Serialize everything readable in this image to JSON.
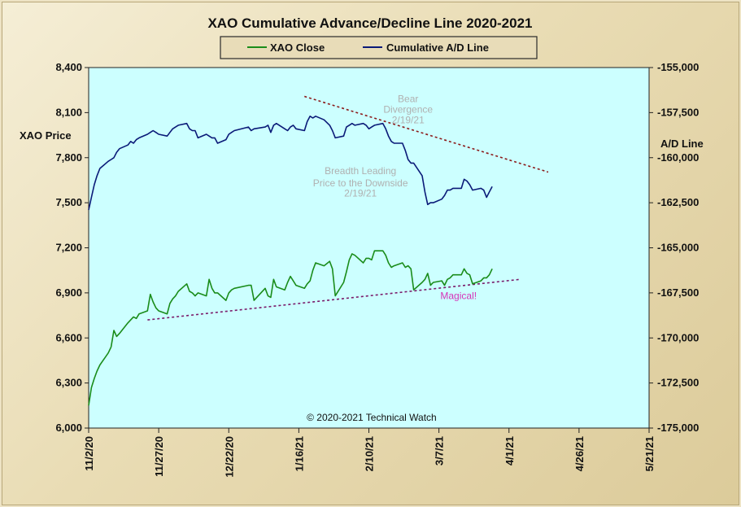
{
  "chart_data": {
    "type": "line",
    "title": "XAO Cumulative Advance/Decline Line 2020-2021",
    "ylabel_left": "XAO Price",
    "ylabel_right": "A/D Line",
    "x_ticks": [
      "11/2/20",
      "11/27/20",
      "12/22/20",
      "1/16/21",
      "2/10/21",
      "3/7/21",
      "4/1/21",
      "4/26/21",
      "5/21/21"
    ],
    "x_range": [
      "2020-11-02",
      "2021-05-21"
    ],
    "ylim_left": [
      6000,
      8400
    ],
    "ylim_right": [
      -175000,
      -155000
    ],
    "y_ticks_left": [
      "6,000",
      "6,300",
      "6,600",
      "6,900",
      "7,200",
      "7,500",
      "7,800",
      "8,100",
      "8,400"
    ],
    "y_ticks_right": [
      "-175,000",
      "-172,500",
      "-170,000",
      "-167,500",
      "-165,000",
      "-162,500",
      "-160,000",
      "-157,500",
      "-155,000"
    ],
    "grid": false,
    "legend_position": "top-center",
    "series": [
      {
        "name": "XAO Close",
        "axis": "left",
        "color": "#1a8c1a",
        "points": [
          [
            "2020-11-02",
            6150
          ],
          [
            "2020-11-03",
            6270
          ],
          [
            "2020-11-04",
            6330
          ],
          [
            "2020-11-05",
            6380
          ],
          [
            "2020-11-06",
            6420
          ],
          [
            "2020-11-09",
            6500
          ],
          [
            "2020-11-10",
            6540
          ],
          [
            "2020-11-11",
            6650
          ],
          [
            "2020-11-12",
            6610
          ],
          [
            "2020-11-13",
            6630
          ],
          [
            "2020-11-16",
            6700
          ],
          [
            "2020-11-17",
            6720
          ],
          [
            "2020-11-18",
            6740
          ],
          [
            "2020-11-19",
            6730
          ],
          [
            "2020-11-20",
            6760
          ],
          [
            "2020-11-23",
            6780
          ],
          [
            "2020-11-24",
            6890
          ],
          [
            "2020-11-25",
            6840
          ],
          [
            "2020-11-26",
            6800
          ],
          [
            "2020-11-27",
            6780
          ],
          [
            "2020-11-30",
            6760
          ],
          [
            "2020-12-01",
            6830
          ],
          [
            "2020-12-02",
            6860
          ],
          [
            "2020-12-03",
            6880
          ],
          [
            "2020-12-04",
            6910
          ],
          [
            "2020-12-07",
            6960
          ],
          [
            "2020-12-08",
            6910
          ],
          [
            "2020-12-09",
            6900
          ],
          [
            "2020-12-10",
            6880
          ],
          [
            "2020-12-11",
            6900
          ],
          [
            "2020-12-14",
            6880
          ],
          [
            "2020-12-15",
            6990
          ],
          [
            "2020-12-16",
            6930
          ],
          [
            "2020-12-17",
            6900
          ],
          [
            "2020-12-18",
            6900
          ],
          [
            "2020-12-21",
            6850
          ],
          [
            "2020-12-22",
            6900
          ],
          [
            "2020-12-23",
            6920
          ],
          [
            "2020-12-24",
            6930
          ],
          [
            "2020-12-29",
            6950
          ],
          [
            "2020-12-30",
            6950
          ],
          [
            "2020-12-31",
            6850
          ],
          [
            "2021-01-04",
            6930
          ],
          [
            "2021-01-05",
            6880
          ],
          [
            "2021-01-06",
            6870
          ],
          [
            "2021-01-07",
            6990
          ],
          [
            "2021-01-08",
            6940
          ],
          [
            "2021-01-11",
            6920
          ],
          [
            "2021-01-12",
            6970
          ],
          [
            "2021-01-13",
            7010
          ],
          [
            "2021-01-14",
            6980
          ],
          [
            "2021-01-15",
            6950
          ],
          [
            "2021-01-18",
            6930
          ],
          [
            "2021-01-19",
            6960
          ],
          [
            "2021-01-20",
            6980
          ],
          [
            "2021-01-21",
            7050
          ],
          [
            "2021-01-22",
            7100
          ],
          [
            "2021-01-25",
            7080
          ],
          [
            "2021-01-27",
            7110
          ],
          [
            "2021-01-28",
            7060
          ],
          [
            "2021-01-29",
            6880
          ],
          [
            "2021-02-01",
            6970
          ],
          [
            "2021-02-02",
            7040
          ],
          [
            "2021-02-03",
            7120
          ],
          [
            "2021-02-04",
            7160
          ],
          [
            "2021-02-05",
            7150
          ],
          [
            "2021-02-08",
            7100
          ],
          [
            "2021-02-09",
            7130
          ],
          [
            "2021-02-10",
            7130
          ],
          [
            "2021-02-11",
            7120
          ],
          [
            "2021-02-12",
            7180
          ],
          [
            "2021-02-15",
            7180
          ],
          [
            "2021-02-16",
            7150
          ],
          [
            "2021-02-17",
            7100
          ],
          [
            "2021-02-18",
            7070
          ],
          [
            "2021-02-19",
            7080
          ],
          [
            "2021-02-22",
            7100
          ],
          [
            "2021-02-23",
            7070
          ],
          [
            "2021-02-24",
            7080
          ],
          [
            "2021-02-25",
            7060
          ],
          [
            "2021-02-26",
            6920
          ],
          [
            "2021-03-01",
            6970
          ],
          [
            "2021-03-02",
            6990
          ],
          [
            "2021-03-03",
            7030
          ],
          [
            "2021-03-04",
            6950
          ],
          [
            "2021-03-05",
            6970
          ],
          [
            "2021-03-08",
            6980
          ],
          [
            "2021-03-09",
            6950
          ],
          [
            "2021-03-10",
            6990
          ],
          [
            "2021-03-11",
            7000
          ],
          [
            "2021-03-12",
            7020
          ],
          [
            "2021-03-15",
            7020
          ],
          [
            "2021-03-16",
            7060
          ],
          [
            "2021-03-17",
            7030
          ],
          [
            "2021-03-18",
            7020
          ],
          [
            "2021-03-19",
            6960
          ],
          [
            "2021-03-22",
            6980
          ],
          [
            "2021-03-23",
            7000
          ],
          [
            "2021-03-24",
            7000
          ],
          [
            "2021-03-25",
            7020
          ],
          [
            "2021-03-26",
            7060
          ]
        ]
      },
      {
        "name": "Cumulative A/D Line",
        "axis": "right",
        "color": "#0a1a78",
        "points": [
          [
            "2020-11-02",
            -162900
          ],
          [
            "2020-11-03",
            -162200
          ],
          [
            "2020-11-04",
            -161500
          ],
          [
            "2020-11-05",
            -161000
          ],
          [
            "2020-11-06",
            -160600
          ],
          [
            "2020-11-09",
            -160200
          ],
          [
            "2020-11-10",
            -160100
          ],
          [
            "2020-11-11",
            -160000
          ],
          [
            "2020-11-12",
            -159700
          ],
          [
            "2020-11-13",
            -159500
          ],
          [
            "2020-11-16",
            -159300
          ],
          [
            "2020-11-17",
            -159100
          ],
          [
            "2020-11-18",
            -159200
          ],
          [
            "2020-11-19",
            -159000
          ],
          [
            "2020-11-20",
            -158900
          ],
          [
            "2020-11-23",
            -158700
          ],
          [
            "2020-11-24",
            -158600
          ],
          [
            "2020-11-25",
            -158500
          ],
          [
            "2020-11-26",
            -158600
          ],
          [
            "2020-11-27",
            -158700
          ],
          [
            "2020-11-30",
            -158800
          ],
          [
            "2020-12-01",
            -158600
          ],
          [
            "2020-12-02",
            -158400
          ],
          [
            "2020-12-03",
            -158300
          ],
          [
            "2020-12-04",
            -158200
          ],
          [
            "2020-12-07",
            -158100
          ],
          [
            "2020-12-08",
            -158400
          ],
          [
            "2020-12-09",
            -158500
          ],
          [
            "2020-12-10",
            -158500
          ],
          [
            "2020-12-11",
            -158900
          ],
          [
            "2020-12-14",
            -158700
          ],
          [
            "2020-12-15",
            -158800
          ],
          [
            "2020-12-16",
            -158900
          ],
          [
            "2020-12-17",
            -158900
          ],
          [
            "2020-12-18",
            -159200
          ],
          [
            "2020-12-21",
            -159000
          ],
          [
            "2020-12-22",
            -158700
          ],
          [
            "2020-12-23",
            -158600
          ],
          [
            "2020-12-24",
            -158500
          ],
          [
            "2020-12-29",
            -158300
          ],
          [
            "2020-12-30",
            -158500
          ],
          [
            "2020-12-31",
            -158400
          ],
          [
            "2021-01-04",
            -158300
          ],
          [
            "2021-01-05",
            -158200
          ],
          [
            "2021-01-06",
            -158600
          ],
          [
            "2021-01-07",
            -158200
          ],
          [
            "2021-01-08",
            -158100
          ],
          [
            "2021-01-11",
            -158400
          ],
          [
            "2021-01-12",
            -158500
          ],
          [
            "2021-01-13",
            -158300
          ],
          [
            "2021-01-14",
            -158200
          ],
          [
            "2021-01-15",
            -158400
          ],
          [
            "2021-01-18",
            -158500
          ],
          [
            "2021-01-19",
            -158000
          ],
          [
            "2021-01-20",
            -157700
          ],
          [
            "2021-01-21",
            -157800
          ],
          [
            "2021-01-22",
            -157700
          ],
          [
            "2021-01-25",
            -157900
          ],
          [
            "2021-01-27",
            -158200
          ],
          [
            "2021-01-28",
            -158500
          ],
          [
            "2021-01-29",
            -158900
          ],
          [
            "2021-02-01",
            -158800
          ],
          [
            "2021-02-02",
            -158300
          ],
          [
            "2021-02-03",
            -158200
          ],
          [
            "2021-02-04",
            -158100
          ],
          [
            "2021-02-05",
            -158200
          ],
          [
            "2021-02-08",
            -158100
          ],
          [
            "2021-02-09",
            -158200
          ],
          [
            "2021-02-10",
            -158400
          ],
          [
            "2021-02-11",
            -158300
          ],
          [
            "2021-02-12",
            -158200
          ],
          [
            "2021-02-15",
            -158100
          ],
          [
            "2021-02-16",
            -158400
          ],
          [
            "2021-02-17",
            -158800
          ],
          [
            "2021-02-18",
            -159100
          ],
          [
            "2021-02-19",
            -159200
          ],
          [
            "2021-02-22",
            -159200
          ],
          [
            "2021-02-23",
            -159600
          ],
          [
            "2021-02-24",
            -160100
          ],
          [
            "2021-02-25",
            -160300
          ],
          [
            "2021-02-26",
            -160300
          ],
          [
            "2021-03-01",
            -161000
          ],
          [
            "2021-03-02",
            -161900
          ],
          [
            "2021-03-03",
            -162600
          ],
          [
            "2021-03-04",
            -162500
          ],
          [
            "2021-03-05",
            -162500
          ],
          [
            "2021-03-08",
            -162300
          ],
          [
            "2021-03-09",
            -162100
          ],
          [
            "2021-03-10",
            -161800
          ],
          [
            "2021-03-11",
            -161800
          ],
          [
            "2021-03-12",
            -161700
          ],
          [
            "2021-03-15",
            -161700
          ],
          [
            "2021-03-16",
            -161200
          ],
          [
            "2021-03-17",
            -161300
          ],
          [
            "2021-03-18",
            -161500
          ],
          [
            "2021-03-19",
            -161800
          ],
          [
            "2021-03-22",
            -161700
          ],
          [
            "2021-03-23",
            -161800
          ],
          [
            "2021-03-24",
            -162200
          ],
          [
            "2021-03-25",
            -161900
          ],
          [
            "2021-03-26",
            -161600
          ]
        ]
      }
    ],
    "trendlines": [
      {
        "axis": "right",
        "color": "#8b1a1a",
        "from": [
          "2021-01-18",
          -156600
        ],
        "to": [
          "2021-04-15",
          -160800
        ]
      },
      {
        "axis": "left",
        "color": "#7a1a6a",
        "from": [
          "2020-11-23",
          6720
        ],
        "to": [
          "2021-04-05",
          6990
        ]
      }
    ],
    "annotations": [
      {
        "text": "Bear",
        "color": "#b0b0b0",
        "at": [
          "2021-02-24",
          8170
        ]
      },
      {
        "text": "Divergence",
        "color": "#b0b0b0",
        "at": [
          "2021-02-24",
          8100
        ]
      },
      {
        "text": "2/19/21",
        "color": "#b0b0b0",
        "at": [
          "2021-02-24",
          8030
        ]
      },
      {
        "text": "Breadth Leading",
        "color": "#b0b0b0",
        "at": [
          "2021-02-07",
          7690
        ]
      },
      {
        "text": "Price to the Downside",
        "color": "#b0b0b0",
        "at": [
          "2021-02-07",
          7610
        ]
      },
      {
        "text": "2/19/21",
        "color": "#b0b0b0",
        "at": [
          "2021-02-07",
          7540
        ]
      },
      {
        "text": "Magical!",
        "color": "#d633b8",
        "at": [
          "2021-03-14",
          6860
        ]
      },
      {
        "text": "© 2020-2021  Technical Watch",
        "color": "#111111",
        "at": [
          "2021-02-11",
          6050
        ]
      }
    ]
  },
  "colors": {
    "plot_background": "#ccffff",
    "page_background": "#e9dcb4"
  }
}
